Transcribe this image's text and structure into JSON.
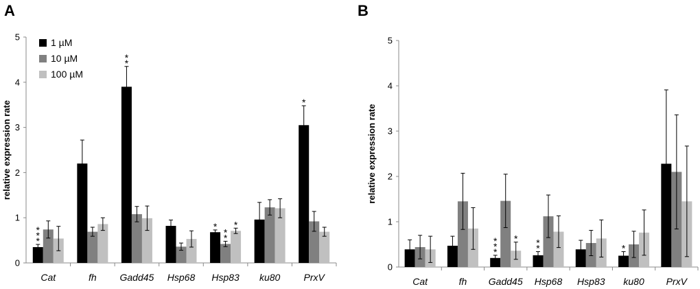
{
  "colors": {
    "s0": "#000000",
    "s1": "#808080",
    "s2": "#c0c0c0"
  },
  "chart_data": [
    {
      "type": "bar",
      "panel": "A",
      "title": "",
      "xlabel": "",
      "ylabel": "relative expression rate",
      "ylim": [
        0,
        5
      ],
      "yticks": [
        "0",
        "1",
        "2",
        "3",
        "4",
        "5"
      ],
      "categories": [
        "Cat",
        "fh",
        "Gadd45",
        "Hsp68",
        "Hsp83",
        "ku80",
        "PrxV"
      ],
      "legend": {
        "position": "top-left",
        "entries": [
          "1 µM",
          "10 µM",
          "100 µM"
        ]
      },
      "series": [
        {
          "name": "1 µM",
          "values": [
            0.35,
            2.2,
            3.9,
            0.82,
            0.68,
            0.96,
            3.05
          ],
          "errors": [
            0.06,
            0.52,
            0.45,
            0.13,
            0.05,
            0.38,
            0.43
          ],
          "sig": [
            "***",
            "",
            "**",
            "",
            "*",
            "",
            "*"
          ]
        },
        {
          "name": "10 µM",
          "values": [
            0.74,
            0.69,
            1.08,
            0.36,
            0.42,
            1.23,
            0.92
          ],
          "errors": [
            0.19,
            0.1,
            0.17,
            0.08,
            0.06,
            0.17,
            0.22
          ],
          "sig": [
            "",
            "",
            "",
            "",
            "**",
            "",
            ""
          ]
        },
        {
          "name": "100 µM",
          "values": [
            0.54,
            0.86,
            0.99,
            0.53,
            0.71,
            1.21,
            0.69
          ],
          "errors": [
            0.27,
            0.14,
            0.27,
            0.18,
            0.06,
            0.21,
            0.1
          ],
          "sig": [
            "",
            "",
            "",
            "",
            "*",
            "",
            ""
          ]
        }
      ]
    },
    {
      "type": "bar",
      "panel": "B",
      "title": "",
      "xlabel": "",
      "ylabel": "relative expression rate",
      "ylim": [
        0,
        5
      ],
      "yticks": [
        "0",
        "1",
        "2",
        "3",
        "4",
        "5"
      ],
      "categories": [
        "Cat",
        "fh",
        "Gadd45",
        "Hsp68",
        "Hsp83",
        "ku80",
        "PrxV"
      ],
      "series": [
        {
          "name": "1 µM",
          "values": [
            0.39,
            0.47,
            0.2,
            0.26,
            0.39,
            0.25,
            2.28
          ],
          "errors": [
            0.21,
            0.21,
            0.06,
            0.08,
            0.2,
            0.09,
            1.63
          ],
          "sig": [
            "",
            "",
            "***",
            "**",
            "",
            "*",
            ""
          ]
        },
        {
          "name": "10 µM",
          "values": [
            0.44,
            1.45,
            1.46,
            1.12,
            0.53,
            0.5,
            2.1
          ],
          "errors": [
            0.26,
            0.62,
            0.59,
            0.47,
            0.28,
            0.29,
            1.26
          ],
          "sig": [
            "",
            "",
            "",
            "",
            "",
            "",
            ""
          ]
        },
        {
          "name": "100 µM",
          "values": [
            0.39,
            0.85,
            0.36,
            0.78,
            0.63,
            0.76,
            1.45
          ],
          "errors": [
            0.29,
            0.46,
            0.19,
            0.35,
            0.41,
            0.5,
            1.22
          ],
          "sig": [
            "",
            "",
            "*",
            "",
            "",
            "",
            ""
          ]
        }
      ]
    }
  ]
}
